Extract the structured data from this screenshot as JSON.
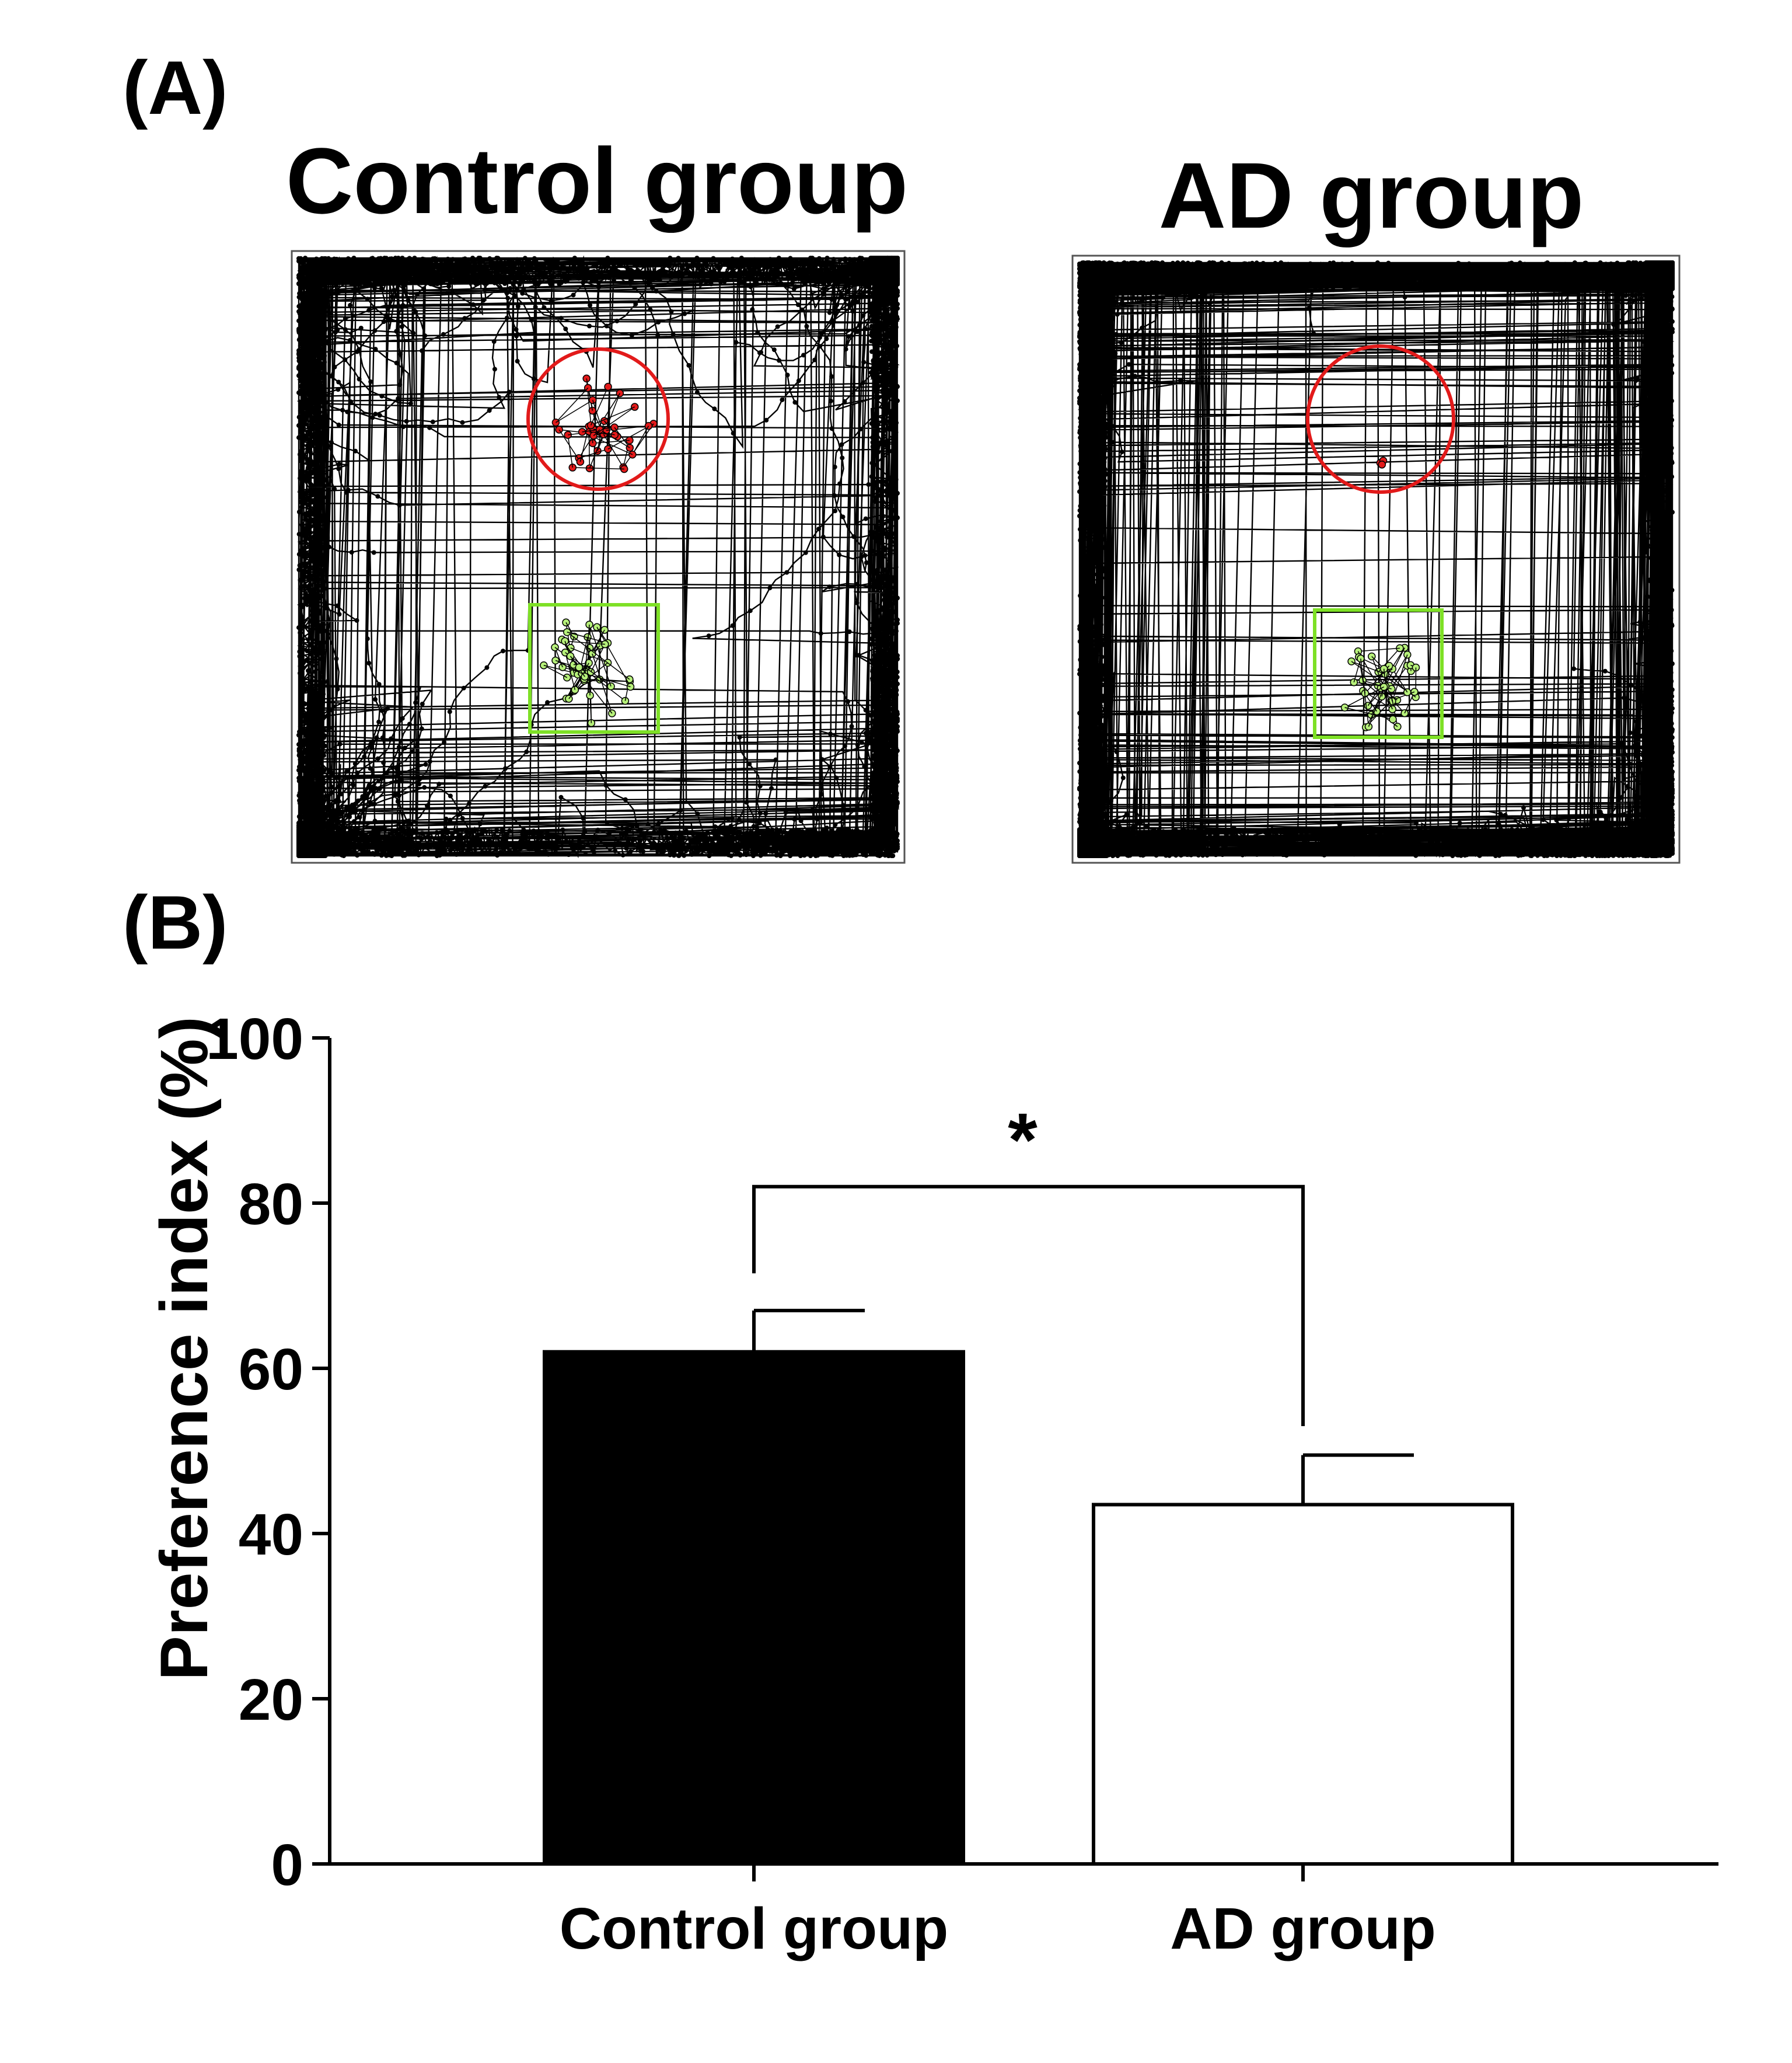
{
  "panels": {
    "a_label": "(A)",
    "b_label": "(B)"
  },
  "tracks": {
    "control_title": "Control group",
    "ad_title": "AD group",
    "colors": {
      "path": "#000000",
      "object_circle": "#e21a1a",
      "object_square": "#7ee026",
      "square_dots": "#b6f07a"
    }
  },
  "chart_data": {
    "type": "bar",
    "categories": [
      "Control group",
      "AD group"
    ],
    "values": [
      62,
      43.5
    ],
    "errors": [
      5,
      6
    ],
    "ylabel": "Preference index (%)",
    "xlabel": "",
    "ylim": [
      0,
      100
    ],
    "yticks": [
      "0",
      "20",
      "40",
      "60",
      "80",
      "100"
    ],
    "bar_fill": [
      "#000000",
      "#ffffff"
    ],
    "bar_edge": "#000000",
    "significance": "*"
  }
}
